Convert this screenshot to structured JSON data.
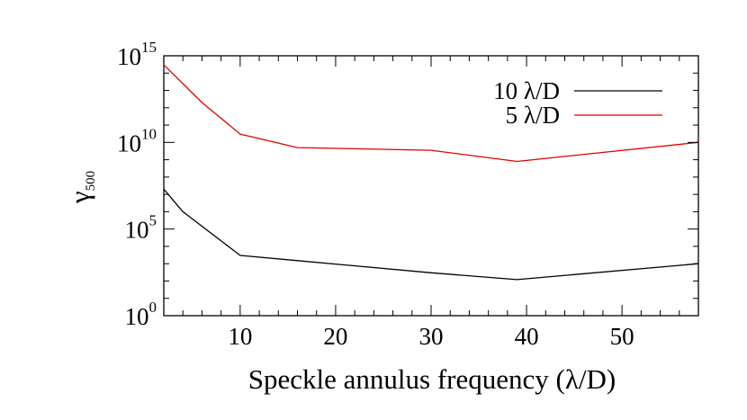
{
  "chart_data": {
    "type": "line",
    "title": "",
    "xlabel": "Speckle annulus frequency (λ/D)",
    "ylabel": "γ",
    "ylabel_subscript": "500",
    "xlim": [
      2,
      58
    ],
    "ylim": [
      1,
      1000000000000000.0
    ],
    "yscale": "log",
    "x_ticks": [
      10,
      20,
      30,
      40,
      50
    ],
    "y_ticks": [
      {
        "value": 1,
        "base": "10",
        "exp": "0"
      },
      {
        "value": 100000,
        "base": "10",
        "exp": "5"
      },
      {
        "value": 10000000000,
        "base": "10",
        "exp": "10"
      },
      {
        "value": 1000000000000000,
        "base": "10",
        "exp": "15"
      }
    ],
    "grid": false,
    "legend_position": "top-right",
    "series": [
      {
        "name": "10 λ/D",
        "color": "#000000",
        "x": [
          2,
          4,
          10,
          16,
          30,
          39,
          58
        ],
        "y": [
          20000000.0,
          1000000.0,
          3000.0,
          1500.0,
          300,
          120,
          1000.0
        ]
      },
      {
        "name": "5 λ/D",
        "color": "#e00000",
        "x": [
          2,
          6,
          10,
          16,
          30,
          39,
          58
        ],
        "y": [
          300000000000000.0,
          2000000000000.0,
          30000000000.0,
          5000000000.0,
          3500000000.0,
          800000000.0,
          10000000000.0
        ]
      }
    ]
  }
}
